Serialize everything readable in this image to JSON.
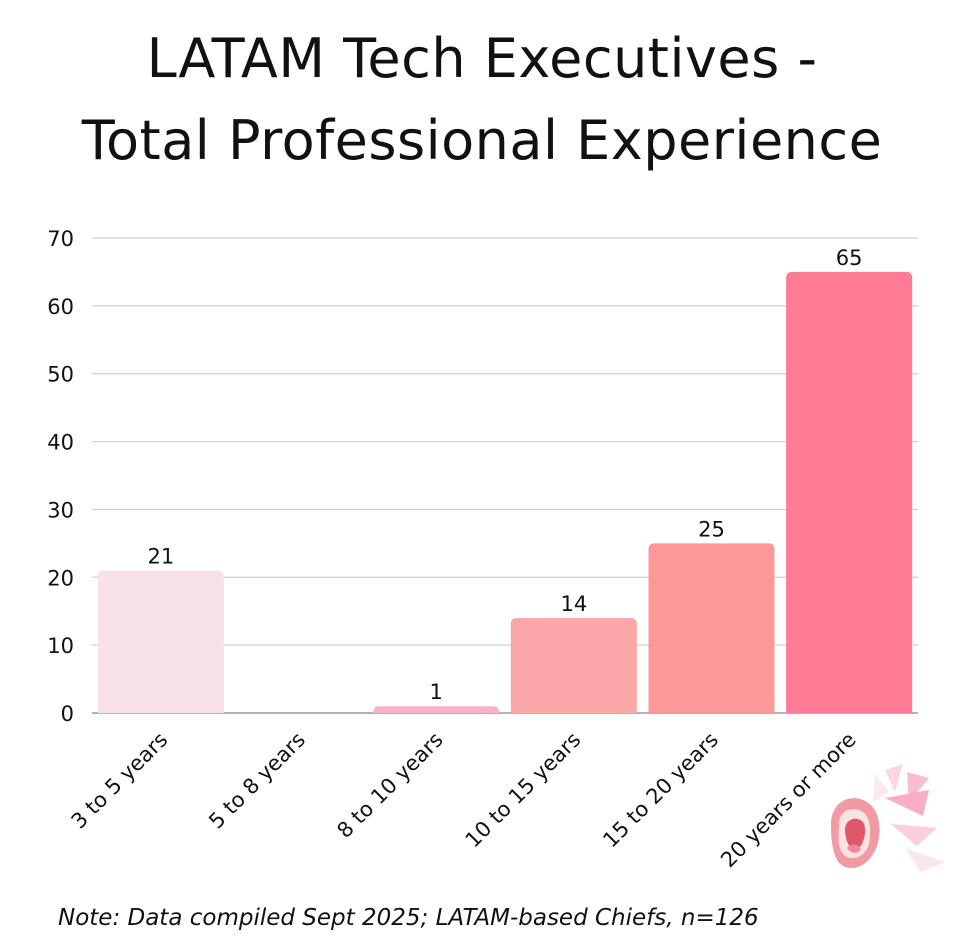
{
  "title": {
    "line1": "LATAM Tech Executives -",
    "line2": "Total Professional Experience"
  },
  "note": "Note: Data compiled Sept 2025; LATAM-based Chiefs, n=126",
  "chart_data": {
    "type": "bar",
    "categories": [
      "3 to 5 years",
      "5 to 8 years",
      "8 to 10 years",
      "10 to 15 years",
      "15 to 20 years",
      "20 years or more"
    ],
    "values": [
      21,
      0,
      1,
      14,
      25,
      65
    ],
    "data_labels": [
      "21",
      "",
      "1",
      "14",
      "25",
      "65"
    ],
    "bar_colors": [
      "#f7e1e6",
      "#f7e1e6",
      "#f8b4c6",
      "#fca7a8",
      "#fe9797",
      "#ff7a95"
    ],
    "ylim": [
      0,
      70
    ],
    "yticks": [
      0,
      10,
      20,
      30,
      40,
      50,
      60,
      70
    ],
    "grid": true,
    "legend": "none",
    "xlabel": "",
    "ylabel": ""
  },
  "colors": {
    "gridline": "#cfcfcf",
    "axis": "#9a9a9a",
    "text": "#111111"
  },
  "logo": {
    "icon": "open-mouth-shout-icon"
  }
}
